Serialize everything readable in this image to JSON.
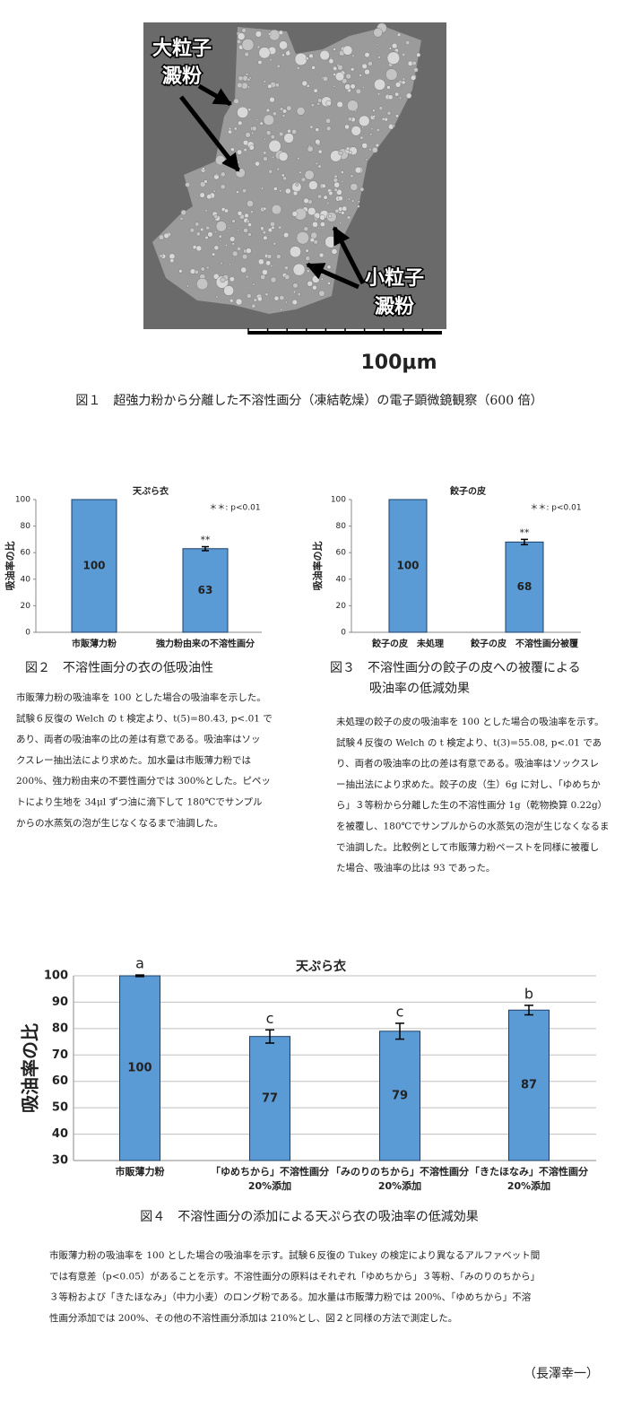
{
  "figure1": {
    "labels": {
      "large": [
        "大粒子",
        "澱粉"
      ],
      "small": [
        "小粒子",
        "澱粉"
      ]
    },
    "scale": "100μm",
    "caption": "図１　超強力粉から分離した不溶性画分（凍結乾燥）の電子顕微鏡観察（600 倍）"
  },
  "chart_data": [
    {
      "type": "bar",
      "title": "天ぷら衣",
      "annotation": "＊＊: p<0.01",
      "y_label": "吸油率の比",
      "categories": [
        "市販薄力粉",
        "強力粉由来の不溶性画分"
      ],
      "values": [
        100,
        63
      ],
      "errors": [
        null,
        1.5
      ],
      "significance": [
        null,
        "**"
      ],
      "color": "#5b9bd5",
      "ylim": [
        0,
        100
      ],
      "yticks": [
        0,
        20,
        40,
        60,
        80,
        100
      ],
      "grid": false
    },
    {
      "type": "bar",
      "title": "餃子の皮",
      "annotation": "＊＊: p<0.01",
      "y_label": "吸油率の比",
      "categories": [
        "餃子の皮　未処理",
        "餃子の皮　不溶性画分被覆"
      ],
      "values": [
        100,
        68
      ],
      "errors": [
        null,
        2
      ],
      "significance": [
        null,
        "**"
      ],
      "color": "#5b9bd5",
      "ylim": [
        0,
        100
      ],
      "yticks": [
        0,
        20,
        40,
        60,
        80,
        100
      ],
      "grid": false
    },
    {
      "type": "bar",
      "title": "天ぷら衣",
      "y_label": "吸油率の比",
      "categories": [
        "市販薄力粉",
        "「ゆめちから」不溶性画分\n20%添加",
        "「みのりのちから」不溶性画分\n20%添加",
        "「きたほなみ」不溶性画分\n20%添加"
      ],
      "values": [
        100,
        77,
        79,
        87
      ],
      "errors": [
        0.3,
        2.5,
        3,
        1.8
      ],
      "significance": [
        "a",
        "c",
        "c",
        "b"
      ],
      "color": "#5b9bd5",
      "ylim": [
        30,
        100
      ],
      "yticks": [
        30,
        40,
        50,
        60,
        70,
        80,
        90,
        100
      ],
      "grid": true
    }
  ],
  "captions": [
    [
      "図２　不溶性画分の衣の低吸油性"
    ],
    [
      "図３　不溶性画分の餃子の皮への被覆による",
      "吸油率の低減効果"
    ],
    [
      "図４　不溶性画分の添加による天ぷら衣の吸油率の低減効果"
    ]
  ],
  "notes": [
    [
      "市販薄力粉の吸油率を 100 とした場合の吸油率を示した。",
      "試験６反復の Welch の t 検定より、t(5)=80.43, p<.01 で",
      "あり、両者の吸油率の比の差は有意である。吸油率はソッ",
      "クスレー抽出法により求めた。加水量は市販薄力粉では",
      "200%、強力粉由来の不要性画分では 300%とした。ピペッ",
      "トにより生地を 34μl ずつ油に滴下して 180℃でサンプル",
      "からの水蒸気の泡が生じなくなるまで油調した。"
    ],
    [
      "未処理の餃子の皮の吸油率を 100 とした場合の吸油率を示す。",
      "試験４反復の Welch の t 検定より、t(3)=55.08, p<.01 であ",
      "り、両者の吸油率の比の差は有意である。吸油率はソックスレ",
      "ー抽出法により求めた。餃子の皮（生）6g に対し、「ゆめちか",
      "ら」３等粉から分離した生の不溶性画分 1g（乾物換算 0.22g）",
      "を被覆し、180℃でサンプルからの水蒸気の泡が生じなくなるま",
      "で油調した。比較例として市販薄力粉ペーストを同様に被覆し",
      "た場合、吸油率の比は 93 であった。"
    ],
    [
      "市販薄力粉の吸油率を 100 とした場合の吸油率を示す。試験６反復の Tukey の検定により異なるアルファベット間",
      "では有意差（p<0.05）があることを示す。不溶性画分の原料はそれぞれ「ゆめちから」３等粉、「みのりのちから」",
      "３等粉および「きたほなみ」（中力小麦）のロング粉である。加水量は市販薄力粉では 200%、「ゆめちから」不溶",
      "性画分添加では 200%、その他の不溶性画分添加は 210%とし、図２と同様の方法で測定した。"
    ]
  ],
  "author": "（長澤幸一）"
}
